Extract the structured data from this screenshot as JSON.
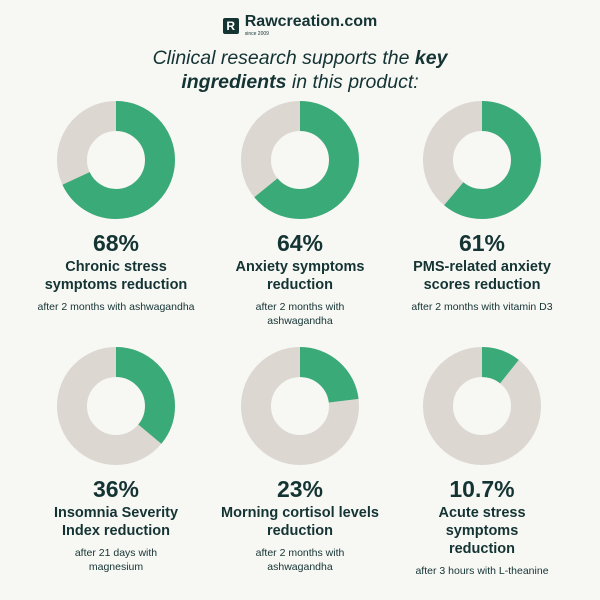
{
  "header": {
    "logo_letter": "R",
    "brand": "Rawcreation.com",
    "since": "since 2009"
  },
  "headline": {
    "part1": "Clinical research supports the ",
    "bold1": "key",
    "bold2": "ingredients",
    "part2": " in this product:"
  },
  "colors": {
    "filled": "#3aaa78",
    "remaining": "#dcd7d0",
    "text": "#143433"
  },
  "chart_data": {
    "type": "pie",
    "title": "Clinical research supports the key ingredients in this product:",
    "items": [
      {
        "value": 68,
        "label": "68%",
        "description": "Chronic stress symptoms reduction",
        "note": "after 2 months with ashwagandha"
      },
      {
        "value": 64,
        "label": "64%",
        "description": "Anxiety symptoms reduction",
        "note": "after 2 months with ashwagandha"
      },
      {
        "value": 61,
        "label": "61%",
        "description": "PMS-related anxiety scores reduction",
        "note": "after 2 months with vitamin D3"
      },
      {
        "value": 36,
        "label": "36%",
        "description": "Insomnia Severity Index reduction",
        "note": "after 21 days with magnesium"
      },
      {
        "value": 23,
        "label": "23%",
        "description": "Morning cortisol levels reduction",
        "note": "after 2 months with ashwagandha"
      },
      {
        "value": 10.7,
        "label": "10.7%",
        "description": "Acute stress symptoms reduction",
        "note": "after 3 hours with L-theanine"
      }
    ]
  }
}
